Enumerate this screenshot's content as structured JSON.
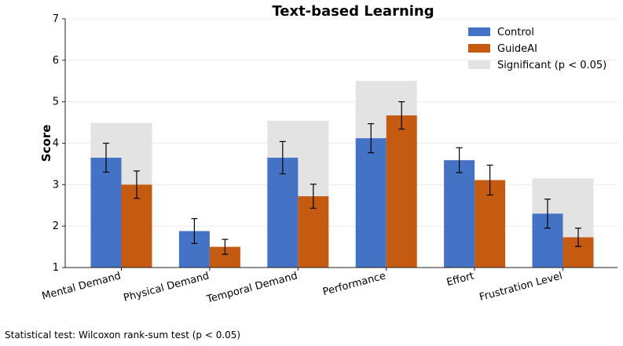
{
  "chart_data": {
    "type": "bar",
    "title": "Text-based Learning",
    "xlabel": "",
    "ylabel": "Score",
    "ylim": [
      1,
      7
    ],
    "yticks": [
      1,
      2,
      3,
      4,
      5,
      6,
      7
    ],
    "grid": true,
    "legend_position": "top-right",
    "categories": [
      "Mental Demand",
      "Physical Demand",
      "Temporal Demand",
      "Performance",
      "Effort",
      "Frustration Level"
    ],
    "series": [
      {
        "name": "Control",
        "color": "#4472C4",
        "values": [
          3.65,
          1.88,
          3.65,
          4.12,
          3.59,
          2.3
        ],
        "error": [
          0.35,
          0.3,
          0.39,
          0.35,
          0.3,
          0.35
        ]
      },
      {
        "name": "GuideAI",
        "color": "#C55A11",
        "values": [
          3.0,
          1.5,
          2.72,
          4.67,
          3.11,
          1.73
        ],
        "error": [
          0.33,
          0.18,
          0.29,
          0.33,
          0.36,
          0.22
        ]
      }
    ],
    "significance": {
      "label": "Significant (p < 0.05)",
      "color": "#e3e3e3",
      "regions": [
        {
          "category": "Mental Demand",
          "top": 4.49
        },
        {
          "category": "Temporal Demand",
          "top": 4.54
        },
        {
          "category": "Performance",
          "top": 5.5
        },
        {
          "category": "Frustration Level",
          "top": 3.15
        }
      ]
    }
  },
  "footnote": "Statistical test: Wilcoxon rank-sum test (p < 0.05)"
}
